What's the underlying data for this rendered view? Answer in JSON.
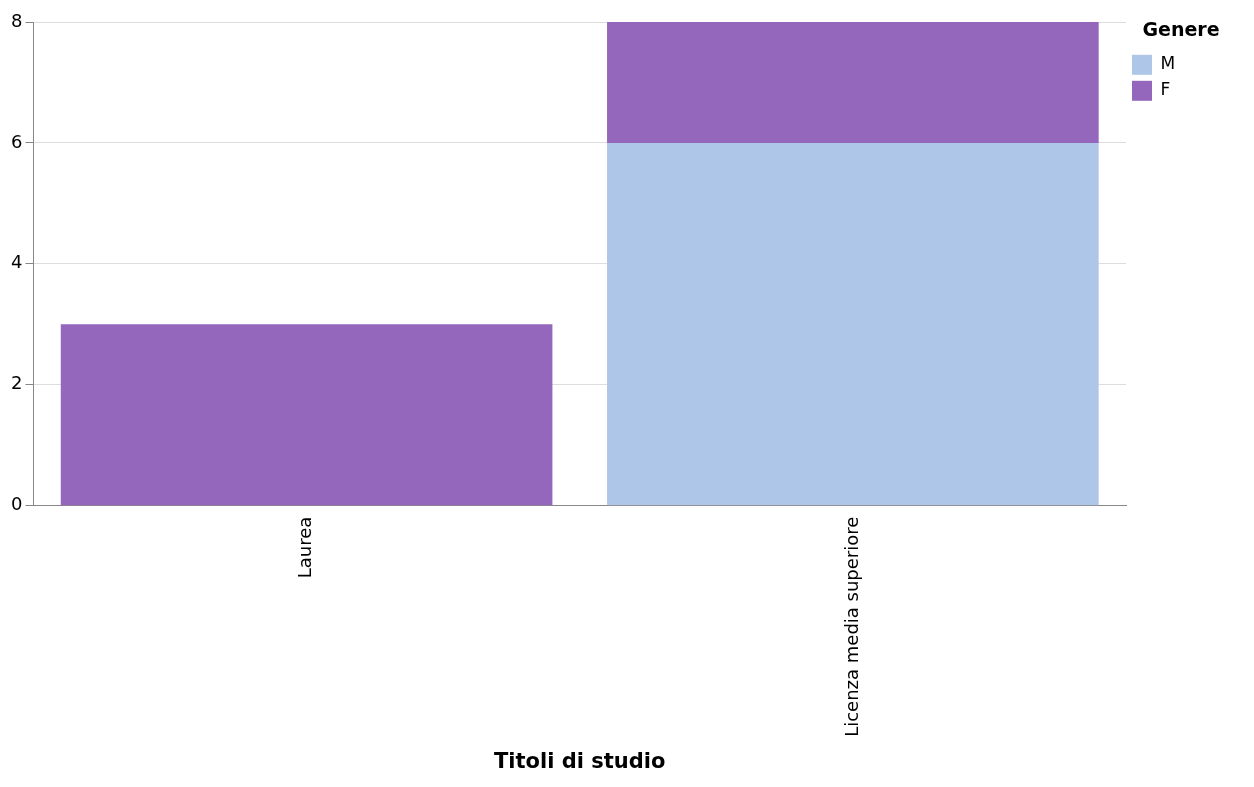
{
  "chart_data": {
    "type": "bar",
    "stacked": true,
    "xlabel": "Titoli di studio",
    "legend_title": "Genere",
    "categories": [
      "Laurea",
      "Licenza media superiore"
    ],
    "series": [
      {
        "name": "M",
        "color": "#aec7e8",
        "values": [
          0,
          6
        ]
      },
      {
        "name": "F",
        "color": "#9467bd",
        "values": [
          3,
          2
        ]
      }
    ],
    "ylim": [
      0,
      8
    ],
    "yticks": [
      0,
      2,
      4,
      6,
      8
    ],
    "grid": "y",
    "legend": "top right"
  }
}
